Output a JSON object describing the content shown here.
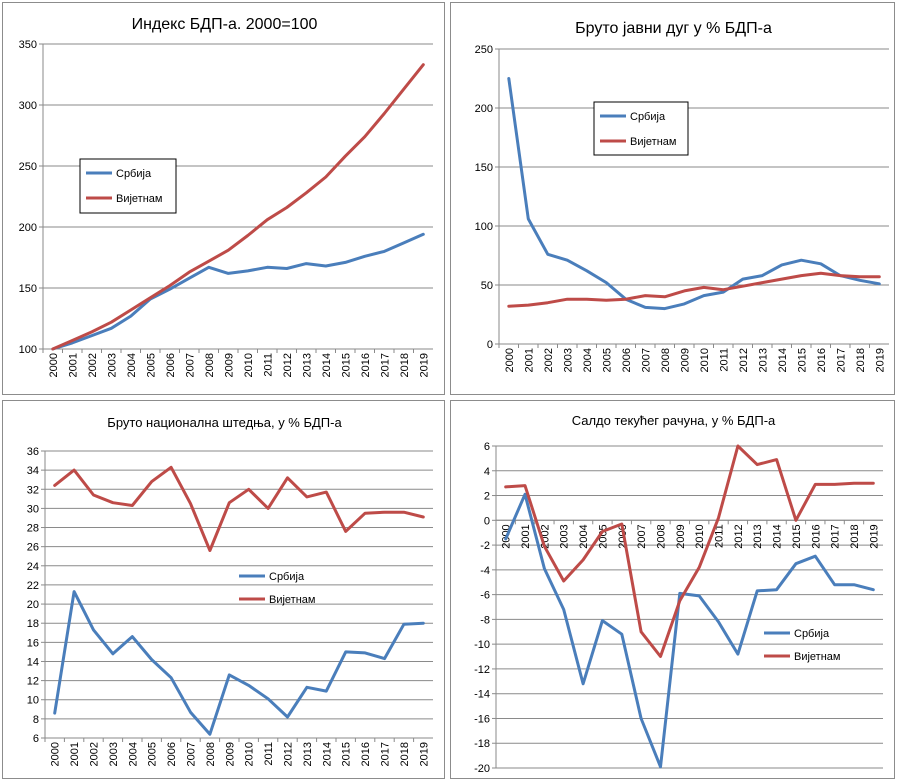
{
  "chart_data": [
    {
      "type": "line",
      "title": "Индекс БДП-а. 2000=100",
      "x": [
        "2000",
        "2001",
        "2002",
        "2003",
        "2004",
        "2005",
        "2006",
        "2007",
        "2008",
        "2009",
        "2010",
        "2011",
        "2012",
        "2013",
        "2014",
        "2015",
        "2016",
        "2017",
        "2018",
        "2019"
      ],
      "ylim": [
        100,
        350
      ],
      "yticks": [
        100,
        150,
        200,
        250,
        300,
        350
      ],
      "series": [
        {
          "name": "Србија",
          "color": "#4a7ebb",
          "values": [
            100,
            105,
            111,
            117,
            127,
            141,
            149,
            158,
            167,
            162,
            164,
            167,
            166,
            170,
            168,
            171,
            176,
            180,
            187,
            194
          ]
        },
        {
          "name": "Вијетнам",
          "color": "#be4b48",
          "values": [
            100,
            107,
            114,
            122,
            132,
            142,
            152,
            163,
            172,
            181,
            193,
            206,
            216,
            228,
            241,
            258,
            274,
            293,
            313,
            333
          ]
        }
      ],
      "legend": "left-center",
      "grid": true
    },
    {
      "type": "line",
      "title": "Бруто јавни дуг у % БДП-а",
      "x": [
        "2000",
        "2001",
        "2002",
        "2003",
        "2004",
        "2005",
        "2006",
        "2007",
        "2008",
        "2009",
        "2010",
        "2011",
        "2012",
        "2013",
        "2014",
        "2015",
        "2016",
        "2017",
        "2018",
        "2019"
      ],
      "ylim": [
        0,
        250
      ],
      "yticks": [
        0,
        50,
        100,
        150,
        200,
        250
      ],
      "series": [
        {
          "name": "Србија",
          "color": "#4a7ebb",
          "values": [
            225,
            106,
            76,
            71,
            62,
            52,
            38,
            31,
            30,
            34,
            41,
            44,
            55,
            58,
            67,
            71,
            68,
            58,
            54,
            51
          ]
        },
        {
          "name": "Вијетнам",
          "color": "#be4b48",
          "values": [
            32,
            33,
            35,
            38,
            38,
            37,
            38,
            41,
            40,
            45,
            48,
            46,
            49,
            52,
            55,
            58,
            60,
            58,
            57,
            57
          ]
        }
      ],
      "legend": "upper-center",
      "grid": true
    },
    {
      "type": "line",
      "title": "Бруто национална штедња, у % БДП-а",
      "x": [
        "2000",
        "2001",
        "2002",
        "2003",
        "2004",
        "2005",
        "2006",
        "2007",
        "2008",
        "2009",
        "2010",
        "2011",
        "2012",
        "2013",
        "2014",
        "2015",
        "2016",
        "2017",
        "2018",
        "2019"
      ],
      "ylim": [
        6,
        36
      ],
      "yticks": [
        6,
        8,
        10,
        12,
        14,
        16,
        18,
        20,
        22,
        24,
        26,
        28,
        30,
        32,
        34,
        36
      ],
      "series": [
        {
          "name": "Србија",
          "color": "#4a7ebb",
          "values": [
            8.6,
            21.3,
            17.3,
            14.8,
            16.6,
            14.2,
            12.3,
            8.7,
            6.4,
            12.6,
            11.5,
            10.1,
            8.2,
            11.3,
            10.9,
            15.0,
            14.9,
            14.3,
            17.9,
            18.0
          ]
        },
        {
          "name": "Вијетнам",
          "color": "#be4b48",
          "values": [
            32.4,
            34.0,
            31.4,
            30.6,
            30.3,
            32.8,
            34.3,
            30.5,
            25.6,
            30.6,
            32.0,
            30.0,
            33.2,
            31.2,
            31.7,
            27.6,
            29.5,
            29.6,
            29.6,
            29.1
          ]
        }
      ],
      "legend": "center",
      "grid": true
    },
    {
      "type": "line",
      "title": "Салдо текућег рачуна, у % БДП-а",
      "x": [
        "2000",
        "2001",
        "2002",
        "2003",
        "2004",
        "2005",
        "2006",
        "2007",
        "2008",
        "2009",
        "2010",
        "2011",
        "2012",
        "2013",
        "2014",
        "2015",
        "2016",
        "2017",
        "2018",
        "2019"
      ],
      "ylim": [
        -20,
        6
      ],
      "yticks": [
        -20,
        -18,
        -16,
        -14,
        -12,
        -10,
        -8,
        -6,
        -4,
        -2,
        0,
        2,
        4,
        6
      ],
      "series": [
        {
          "name": "Србија",
          "color": "#4a7ebb",
          "values": [
            -1.5,
            2.1,
            -3.9,
            -7.2,
            -13.2,
            -8.1,
            -9.2,
            -16.0,
            -19.9,
            -5.9,
            -6.1,
            -8.2,
            -10.8,
            -5.7,
            -5.6,
            -3.5,
            -2.9,
            -5.2,
            -5.2,
            -5.6
          ]
        },
        {
          "name": "Вијетнам",
          "color": "#be4b48",
          "values": [
            2.7,
            2.8,
            -2.1,
            -4.9,
            -3.2,
            -0.9,
            -0.3,
            -9.0,
            -11.0,
            -6.5,
            -3.8,
            0.2,
            6.0,
            4.5,
            4.9,
            0.0,
            2.9,
            2.9,
            3.0,
            3.0
          ]
        }
      ],
      "legend": "lower-right",
      "grid": true
    }
  ]
}
